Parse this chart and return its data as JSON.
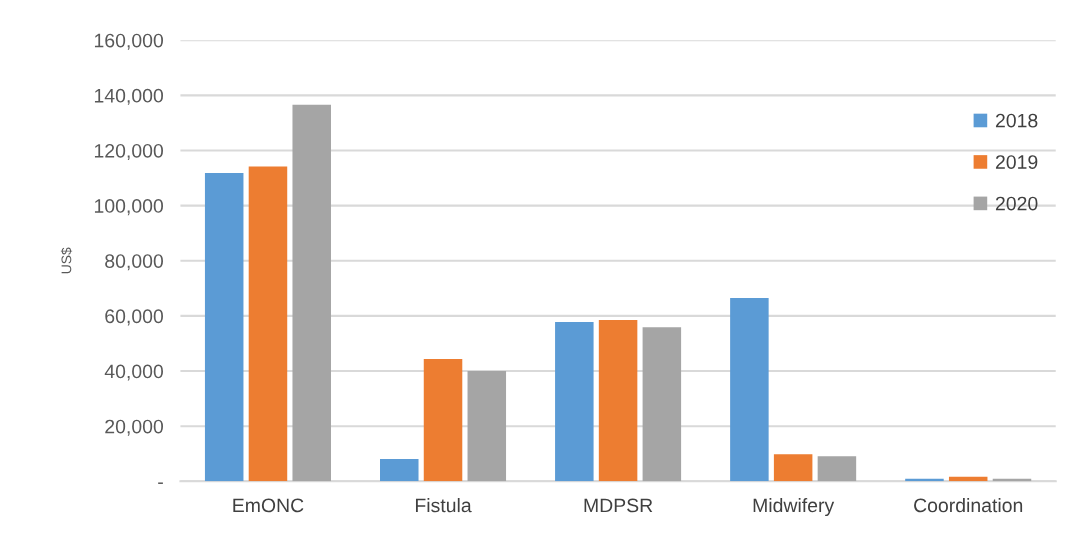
{
  "chart_data": {
    "type": "bar",
    "ylabel": "US$",
    "categories": [
      "EmONC",
      "Fistula",
      "MDPSR",
      "Midwifery",
      "Coordination"
    ],
    "series": [
      {
        "name": "2018",
        "color": "#5b9bd5",
        "values": [
          111800,
          8100,
          57800,
          66500,
          900
        ]
      },
      {
        "name": "2019",
        "color": "#ed7d31",
        "values": [
          114200,
          44400,
          58500,
          9800,
          1700
        ]
      },
      {
        "name": "2020",
        "color": "#a5a5a5",
        "values": [
          136600,
          40000,
          55900,
          9100,
          900
        ]
      }
    ],
    "ylim": [
      0,
      160000
    ],
    "yticks": [
      {
        "value": 0,
        "label": "-"
      },
      {
        "value": 20000,
        "label": "20,000"
      },
      {
        "value": 40000,
        "label": "40,000"
      },
      {
        "value": 60000,
        "label": "60,000"
      },
      {
        "value": 80000,
        "label": "80,000"
      },
      {
        "value": 100000,
        "label": "100,000"
      },
      {
        "value": 120000,
        "label": "120,000"
      },
      {
        "value": 140000,
        "label": "140,000"
      },
      {
        "value": 160000,
        "label": "160,000"
      }
    ],
    "grid": "y",
    "legend": "right"
  }
}
